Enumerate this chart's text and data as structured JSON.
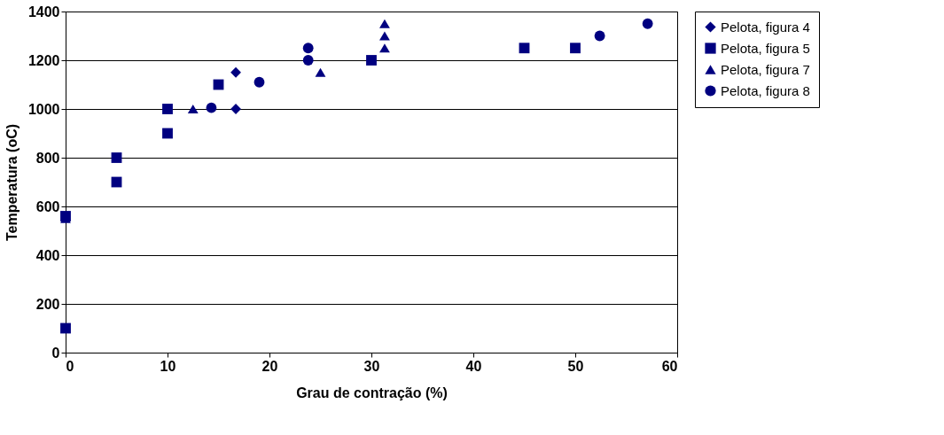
{
  "chart_data": {
    "type": "scatter",
    "xlabel": "Grau de contração (%)",
    "ylabel": "Temperatura (oC)",
    "xlim": [
      0,
      60
    ],
    "xticks": [
      0,
      10,
      20,
      30,
      40,
      50,
      60
    ],
    "ylim": [
      0,
      1400
    ],
    "yticks": [
      0,
      200,
      400,
      600,
      800,
      1000,
      1200,
      1400
    ],
    "grid": "y",
    "legend": "right",
    "series": [
      {
        "name": "Pelota, figura 4",
        "color": "#000080",
        "marker": "diamond",
        "x": [
          16.7,
          16.7
        ],
        "values": [
          1150,
          1000
        ]
      },
      {
        "name": "Pelota, figura 5",
        "color": "#000080",
        "marker": "square",
        "x": [
          0,
          0,
          5,
          5,
          10,
          10,
          15,
          30,
          45,
          50
        ],
        "values": [
          100,
          560,
          800,
          700,
          1000,
          900,
          1100,
          1200,
          1250,
          1250
        ]
      },
      {
        "name": "Pelota, figura 7",
        "color": "#000080",
        "marker": "triangle",
        "x": [
          0,
          12.5,
          25,
          31.3,
          31.3,
          31.3
        ],
        "values": [
          550,
          1000,
          1150,
          1250,
          1300,
          1350
        ]
      },
      {
        "name": "Pelota, figura 8",
        "color": "#000080",
        "marker": "circle",
        "x": [
          14.3,
          19,
          23.8,
          23.8,
          52.4,
          57.1
        ],
        "values": [
          1005,
          1110,
          1250,
          1200,
          1300,
          1350
        ]
      }
    ]
  }
}
